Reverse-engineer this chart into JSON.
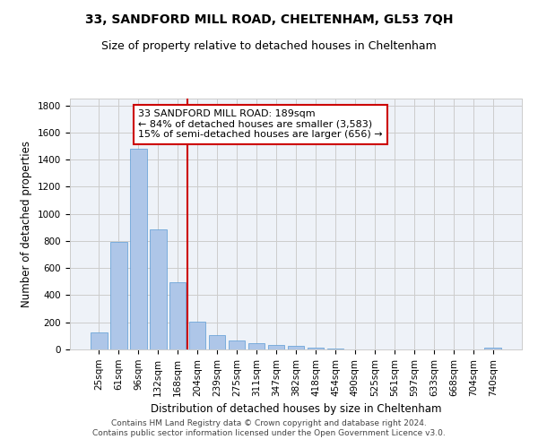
{
  "title_line1": "33, SANDFORD MILL ROAD, CHELTENHAM, GL53 7QH",
  "title_line2": "Size of property relative to detached houses in Cheltenham",
  "xlabel": "Distribution of detached houses by size in Cheltenham",
  "ylabel": "Number of detached properties",
  "footer_line1": "Contains HM Land Registry data © Crown copyright and database right 2024.",
  "footer_line2": "Contains public sector information licensed under the Open Government Licence v3.0.",
  "annotation_line1": "33 SANDFORD MILL ROAD: 189sqm",
  "annotation_line2": "← 84% of detached houses are smaller (3,583)",
  "annotation_line3": "15% of semi-detached houses are larger (656) →",
  "bar_color": "#aec6e8",
  "bar_edge_color": "#5b9bd5",
  "vline_color": "#cc0000",
  "annotation_box_color": "#cc0000",
  "background_color": "#ffffff",
  "grid_color": "#cccccc",
  "categories": [
    "25sqm",
    "61sqm",
    "96sqm",
    "132sqm",
    "168sqm",
    "204sqm",
    "239sqm",
    "275sqm",
    "311sqm",
    "347sqm",
    "382sqm",
    "418sqm",
    "454sqm",
    "490sqm",
    "525sqm",
    "561sqm",
    "597sqm",
    "633sqm",
    "668sqm",
    "704sqm",
    "740sqm"
  ],
  "values": [
    125,
    795,
    1480,
    885,
    495,
    205,
    105,
    65,
    45,
    32,
    27,
    10,
    4,
    2,
    1,
    1,
    0,
    0,
    0,
    0,
    10
  ],
  "ylim": [
    0,
    1850
  ],
  "yticks": [
    0,
    200,
    400,
    600,
    800,
    1000,
    1200,
    1400,
    1600,
    1800
  ],
  "vline_x_index": 4.5,
  "title_fontsize": 10,
  "subtitle_fontsize": 9,
  "axis_label_fontsize": 8.5,
  "tick_fontsize": 7.5,
  "annotation_fontsize": 8,
  "footer_fontsize": 6.5
}
